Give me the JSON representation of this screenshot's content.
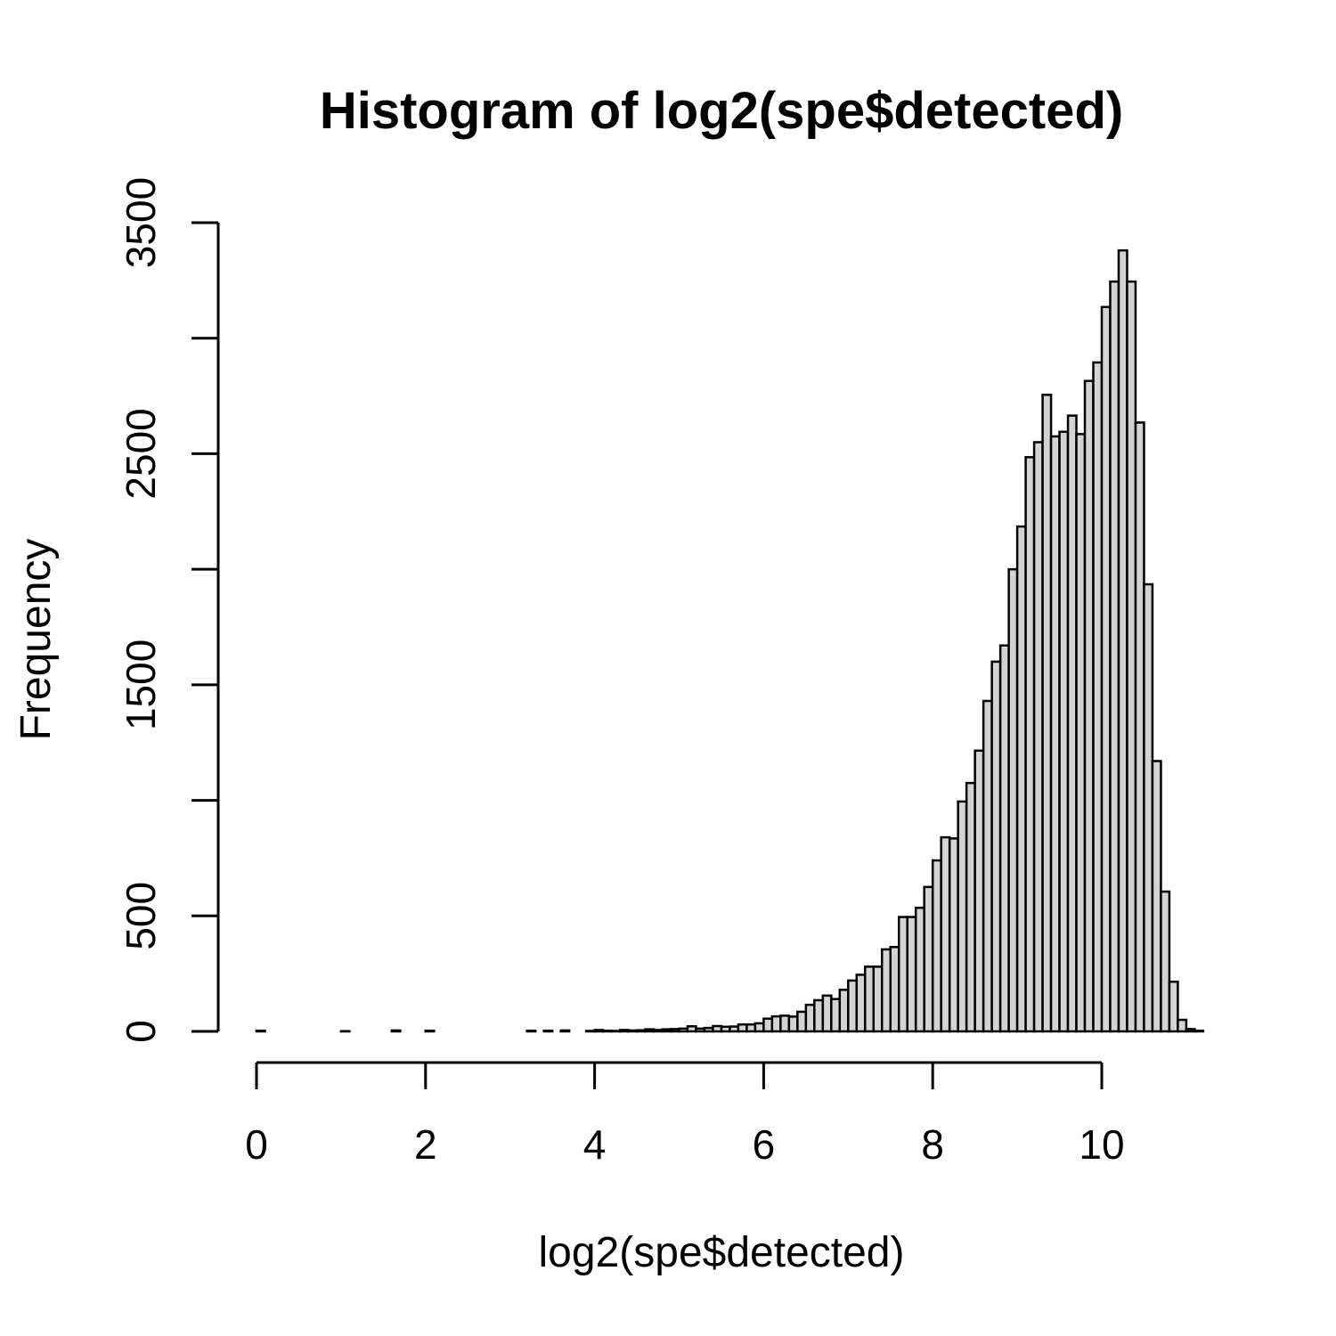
{
  "chart_data": {
    "type": "bar",
    "title": "Histogram of log2(spe$detected)",
    "xlabel": "log2(spe$detected)",
    "ylabel": "Frequency",
    "bin_width": 0.1,
    "bin_start": 0,
    "xlim": [
      0,
      11
    ],
    "ylim": [
      0,
      3500
    ],
    "x_ticks": [
      0,
      2,
      4,
      6,
      8,
      10
    ],
    "y_ticks": [
      0,
      500,
      1000,
      1500,
      2000,
      2500,
      3000,
      3500
    ],
    "y_tick_labels": [
      "0",
      "500",
      "",
      "1500",
      "",
      "2500",
      "",
      "3500"
    ],
    "grid": false,
    "bar_color": "#d3d3d3",
    "values": [
      3,
      0,
      0,
      0,
      0,
      0,
      0,
      0,
      0,
      0,
      1,
      0,
      0,
      0,
      0,
      0,
      4,
      0,
      0,
      0,
      3,
      0,
      0,
      0,
      0,
      0,
      0,
      0,
      0,
      0,
      0,
      0,
      3,
      0,
      3,
      0,
      4,
      0,
      0,
      2,
      6,
      3,
      2,
      6,
      4,
      5,
      9,
      6,
      9,
      10,
      12,
      22,
      12,
      15,
      23,
      20,
      21,
      30,
      30,
      35,
      55,
      65,
      68,
      64,
      85,
      115,
      135,
      155,
      140,
      180,
      220,
      245,
      280,
      280,
      355,
      365,
      495,
      495,
      535,
      625,
      740,
      840,
      835,
      995,
      1075,
      1215,
      1430,
      1600,
      1670,
      2000,
      2185,
      2485,
      2550,
      2755,
      2575,
      2595,
      2665,
      2585,
      2815,
      2895,
      3135,
      3245,
      3380,
      3245,
      2635,
      1935,
      1170,
      605,
      215,
      50,
      10,
      3
    ]
  }
}
